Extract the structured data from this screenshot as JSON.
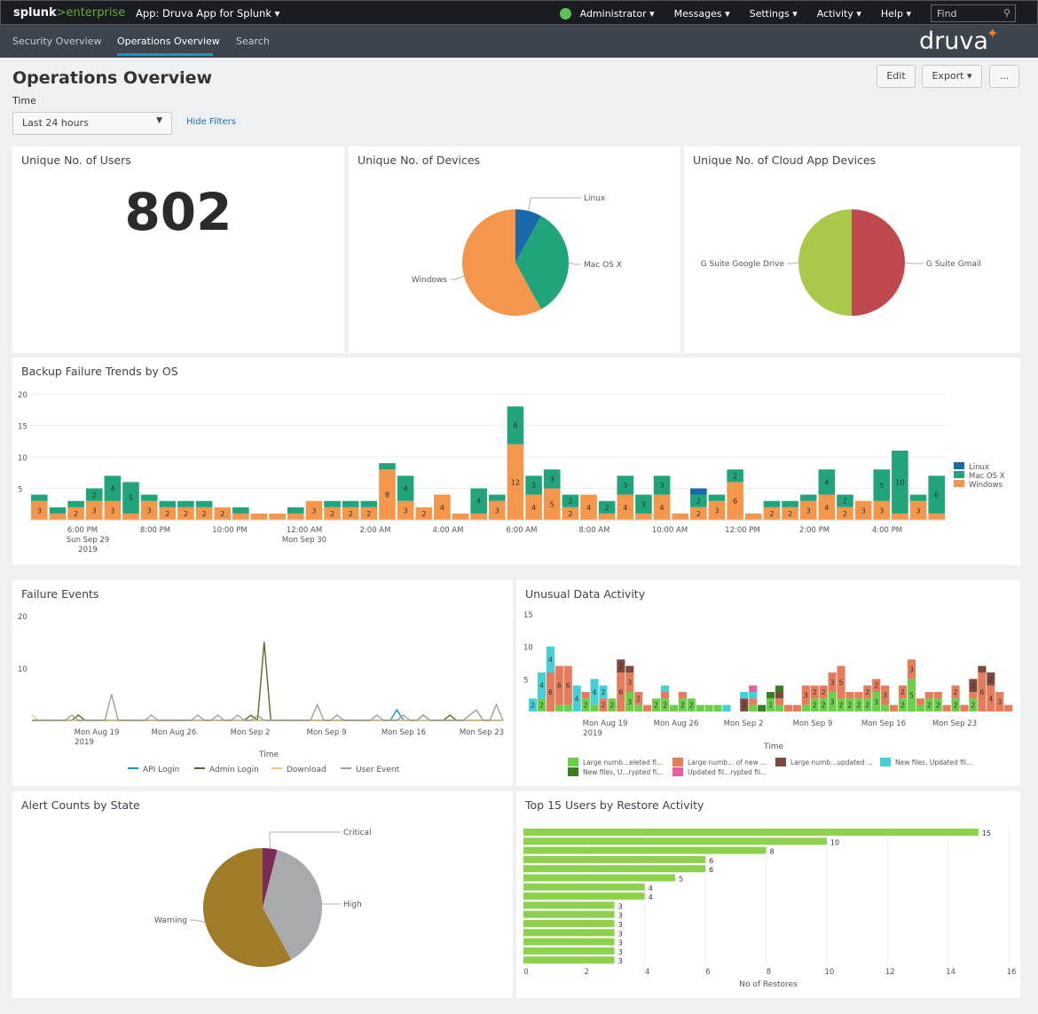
{
  "header": {
    "brand_a": "splunk",
    "brand_b": ">enterprise",
    "app": "App: Druva App for Splunk ▾",
    "menus": [
      "Administrator ▾",
      "Messages ▾",
      "Settings ▾",
      "Activity ▾",
      "Help ▾"
    ],
    "find_placeholder": "Find",
    "icon": "search-icon"
  },
  "nav": {
    "tabs": [
      "Security Overview",
      "Operations Overview",
      "Search"
    ],
    "logo": "druva"
  },
  "page": {
    "title": "Operations Overview",
    "edit": "Edit",
    "export": "Export ▾",
    "more": "...",
    "time_label": "Time",
    "time_value": "Last 24 hours",
    "hide_filters": "Hide Filters"
  },
  "panels": {
    "users": {
      "title": "Unique No. of Users",
      "value": "802"
    },
    "devices": {
      "title": "Unique No. of Devices"
    },
    "cloud": {
      "title": "Unique No. of Cloud App Devices"
    },
    "backup": {
      "title": "Backup Failure Trends by OS"
    },
    "failure": {
      "title": "Failure Events"
    },
    "unusual": {
      "title": "Unusual Data Activity"
    },
    "alerts": {
      "title": "Alert Counts by State"
    },
    "top": {
      "title": "Top 15 Users by Restore Activity"
    }
  },
  "chart_data": [
    {
      "id": "devices",
      "type": "pie",
      "labels": [
        "Linux",
        "Mac OS X",
        "Windows"
      ],
      "values": [
        8,
        34,
        58
      ],
      "colors": [
        "#1a6aab",
        "#21a37c",
        "#f4964b"
      ]
    },
    {
      "id": "cloud",
      "type": "pie",
      "labels": [
        "G Suite Gmail",
        "G Suite Google Drive"
      ],
      "values": [
        50,
        50
      ],
      "colors": [
        "#c0494f",
        "#a8c94a"
      ]
    },
    {
      "id": "backup",
      "type": "bar",
      "stacked": true,
      "ylim": [
        0,
        20
      ],
      "yticks": [
        5,
        10,
        15,
        20
      ],
      "xticks": [
        "6:00 PM\nSun Sep 29\n2019",
        "8:00 PM",
        "10:00 PM",
        "12:00 AM\nMon Sep 30",
        "2:00 AM",
        "4:00 AM",
        "6:00 AM",
        "8:00 AM",
        "10:00 AM",
        "12:00 PM",
        "2:00 PM",
        "4:00 PM"
      ],
      "series": [
        {
          "name": "Windows",
          "color": "#f4964b",
          "values": [
            3,
            1,
            2,
            3,
            3,
            1,
            3,
            2,
            2,
            2,
            2,
            1,
            1,
            1,
            1,
            3,
            2,
            2,
            2,
            8,
            3,
            2,
            4,
            1,
            1,
            3,
            12,
            4,
            5,
            2,
            4,
            1,
            4,
            1,
            4,
            1,
            2,
            3,
            6,
            1,
            2,
            2,
            3,
            4,
            2,
            3,
            3,
            1,
            3,
            1
          ]
        },
        {
          "name": "Mac OS X",
          "color": "#21a37c",
          "values": [
            1,
            1,
            1,
            2,
            4,
            5,
            1,
            1,
            1,
            1,
            0,
            1,
            0,
            0,
            1,
            0,
            1,
            1,
            1,
            1,
            4,
            0,
            0,
            0,
            4,
            1,
            6,
            3,
            3,
            2,
            0,
            2,
            3,
            3,
            3,
            0,
            2,
            1,
            2,
            0,
            1,
            1,
            1,
            4,
            2,
            0,
            5,
            10,
            1,
            6
          ]
        },
        {
          "name": "Linux",
          "color": "#1a6aab",
          "values": [
            0,
            0,
            0,
            0,
            0,
            0,
            0,
            0,
            0,
            0,
            0,
            0,
            0,
            0,
            0,
            0,
            0,
            0,
            0,
            0,
            0,
            0,
            0,
            0,
            0,
            0,
            0,
            0,
            0,
            0,
            0,
            0,
            0,
            0,
            0,
            0,
            1,
            0,
            0,
            0,
            0,
            0,
            0,
            0,
            0,
            0,
            0,
            0,
            0,
            0
          ]
        }
      ]
    },
    {
      "id": "failure",
      "type": "line",
      "ylim": [
        0,
        20
      ],
      "yticks": [
        10,
        20
      ],
      "xlabel": "Time",
      "xticks": [
        "Mon Aug 19\n2019",
        "Mon Aug 26",
        "Mon Sep 2",
        "Mon Sep 9",
        "Mon Sep 16",
        "Mon Sep 23"
      ],
      "series": [
        {
          "name": "API Login",
          "color": "#1e93c6",
          "values": [
            0,
            0,
            0,
            0,
            0,
            0,
            0,
            0,
            0,
            0,
            0,
            0,
            0,
            0,
            0,
            0,
            0,
            0,
            0,
            0,
            0,
            0,
            0,
            0,
            0,
            0,
            0,
            0,
            0,
            0,
            0,
            0,
            0,
            0,
            0,
            0,
            0,
            0,
            0,
            0,
            0,
            0,
            0,
            0,
            0,
            0,
            0,
            0,
            0,
            0,
            0,
            0,
            0,
            0,
            0,
            2,
            0,
            0,
            0,
            0,
            0,
            0,
            0,
            0,
            0,
            0,
            0,
            0,
            0,
            0,
            0,
            0
          ]
        },
        {
          "name": "Admin Login",
          "color": "#4f6e23",
          "values": [
            0,
            0,
            0,
            0,
            0,
            0,
            0,
            1,
            0,
            0,
            0,
            0,
            0,
            0,
            0,
            0,
            0,
            0,
            0,
            0,
            0,
            0,
            0,
            0,
            0,
            0,
            0,
            0,
            0,
            0,
            0,
            0,
            0,
            1,
            0,
            15,
            0,
            0,
            0,
            0,
            0,
            0,
            0,
            0,
            0,
            0,
            0,
            0,
            0,
            0,
            0,
            0,
            0,
            0,
            0,
            0,
            0,
            0,
            0,
            1,
            0,
            0,
            0,
            1,
            0,
            0,
            0,
            0,
            0,
            0,
            0,
            0
          ]
        },
        {
          "name": "Download",
          "color": "#e8c685",
          "values": [
            1,
            0,
            0,
            0,
            0,
            0,
            0,
            0,
            0,
            0,
            0,
            0,
            0,
            0,
            0,
            0,
            0,
            0,
            0,
            0,
            0,
            0,
            0,
            0,
            0,
            0,
            0,
            0,
            0,
            0,
            0,
            0,
            0,
            0,
            0,
            0,
            0,
            0,
            0,
            0,
            0,
            0,
            0,
            0,
            0,
            0,
            0,
            0,
            0,
            0,
            0,
            0,
            0,
            0,
            0,
            0,
            0,
            0,
            0,
            0,
            0,
            0,
            0,
            0,
            0,
            0,
            0,
            0,
            0,
            0,
            0,
            0
          ]
        },
        {
          "name": "User Event",
          "color": "#a39e8f",
          "values": [
            0,
            0,
            0,
            0,
            0,
            0,
            1,
            0,
            0,
            0,
            0,
            0,
            5,
            0,
            0,
            0,
            0,
            0,
            1,
            0,
            0,
            0,
            0,
            0,
            0,
            1,
            0,
            0,
            1,
            0,
            0,
            1,
            0,
            0,
            1,
            0,
            0,
            0,
            0,
            0,
            0,
            0,
            0,
            3,
            0,
            0,
            1,
            0,
            0,
            0,
            0,
            0,
            1,
            0,
            0,
            0,
            1,
            0,
            0,
            1,
            0,
            0,
            0,
            0,
            0,
            0,
            1,
            2,
            0,
            0,
            3,
            0
          ]
        }
      ]
    },
    {
      "id": "unusual",
      "type": "bar",
      "stacked": true,
      "ylim": [
        0,
        15
      ],
      "yticks": [
        5,
        10,
        15
      ],
      "xlabel": "Time",
      "xticks": [
        "Mon Aug 19\n2019",
        "Mon Aug 26",
        "Mon Sep 2",
        "Mon Sep 9",
        "Mon Sep 16",
        "Mon Sep 23"
      ],
      "legend": [
        "Large numb...eleted fi...",
        "Large numb... of new ...",
        "Large numb...updated ...",
        "New files, Updated fil...",
        "New files, U...rypted fi...",
        "Updated fil...rypted fil..."
      ],
      "series": [
        {
          "name": "Large numb...eleted fi...",
          "color": "#6ccf4a",
          "values": [
            0,
            2,
            0,
            1,
            1,
            0,
            2,
            1,
            0,
            2,
            0,
            3,
            1,
            0,
            2,
            2,
            1,
            2,
            2,
            1,
            1,
            1,
            0,
            0,
            0,
            1,
            0,
            2,
            1,
            0,
            0,
            1,
            2,
            2,
            3,
            2,
            2,
            2,
            2,
            3,
            1,
            0,
            2,
            5,
            1,
            2,
            2,
            0,
            2,
            0,
            2,
            0,
            0,
            0,
            0
          ]
        },
        {
          "name": "Large numb... of new ...",
          "color": "#e57d5c",
          "values": [
            0,
            0,
            6,
            6,
            6,
            0,
            1,
            0,
            2,
            0,
            6,
            3,
            2,
            1,
            0,
            1,
            0,
            1,
            0,
            0,
            0,
            0,
            0,
            0,
            0,
            1,
            0,
            0,
            1,
            1,
            1,
            3,
            2,
            2,
            3,
            5,
            1,
            1,
            2,
            2,
            3,
            1,
            2,
            3,
            1,
            1,
            1,
            1,
            2,
            1,
            1,
            6,
            4,
            3,
            1
          ]
        },
        {
          "name": "Large numb...updated ...",
          "color": "#7c4b3e",
          "values": [
            0,
            0,
            0,
            0,
            0,
            0,
            0,
            0,
            0,
            0,
            2,
            1,
            0,
            0,
            0,
            0,
            0,
            0,
            0,
            0,
            0,
            0,
            0,
            0,
            2,
            0,
            0,
            0,
            1,
            0,
            0,
            0,
            0,
            0,
            0,
            0,
            0,
            0,
            0,
            0,
            0,
            0,
            0,
            0,
            0,
            0,
            0,
            0,
            0,
            0,
            2,
            1,
            2,
            0,
            0
          ]
        },
        {
          "name": "New files, Updated fil...",
          "color": "#45d0d8",
          "values": [
            2,
            4,
            4,
            0,
            0,
            4,
            0,
            4,
            2,
            0,
            0,
            0,
            0,
            0,
            0,
            1,
            0,
            0,
            0,
            0,
            0,
            0,
            1,
            0,
            1,
            1,
            0,
            0,
            0,
            0,
            0,
            0,
            0,
            0,
            0,
            0,
            0,
            0,
            0,
            0,
            0,
            0,
            0,
            0,
            0,
            0,
            0,
            0,
            0,
            0,
            0,
            0,
            0,
            0,
            0
          ]
        },
        {
          "name": "New files, U...rypted fi...",
          "color": "#3a7d24",
          "values": [
            0,
            0,
            0,
            0,
            0,
            0,
            0,
            0,
            0,
            0,
            0,
            0,
            0,
            0,
            0,
            0,
            0,
            0,
            0,
            0,
            0,
            0,
            0,
            0,
            0,
            0,
            1,
            1,
            1,
            0,
            0,
            0,
            0,
            0,
            0,
            0,
            0,
            0,
            0,
            0,
            0,
            0,
            0,
            0,
            0,
            0,
            0,
            0,
            0,
            0,
            0,
            0,
            0,
            0,
            0
          ]
        },
        {
          "name": "Updated fil...rypted fil...",
          "color": "#e85ea0",
          "values": [
            0,
            0,
            0,
            0,
            0,
            0,
            0,
            0,
            0,
            0,
            0,
            0,
            0,
            0,
            0,
            0,
            0,
            0,
            0,
            0,
            0,
            0,
            0,
            0,
            0,
            1,
            0,
            0,
            0,
            0,
            0,
            0,
            0,
            0,
            0,
            0,
            0,
            0,
            0,
            0,
            0,
            0,
            0,
            0,
            0,
            0,
            0,
            0,
            0,
            0,
            0,
            0,
            0,
            0,
            0
          ]
        }
      ]
    },
    {
      "id": "alerts",
      "type": "pie",
      "labels": [
        "Critical",
        "High",
        "Warning"
      ],
      "values": [
        4,
        38,
        58
      ],
      "colors": [
        "#7a2b58",
        "#a9aaae",
        "#a07c28"
      ]
    },
    {
      "id": "top",
      "type": "bar",
      "orientation": "horizontal",
      "xlabel": "No of Restores",
      "xlim": [
        0,
        16
      ],
      "xticks": [
        0,
        2,
        4,
        6,
        8,
        10,
        12,
        14,
        16
      ],
      "color": "#8ed14e",
      "values": [
        15,
        10,
        8,
        6,
        6,
        5,
        4,
        4,
        3,
        3,
        3,
        3,
        3,
        3,
        3
      ]
    }
  ]
}
